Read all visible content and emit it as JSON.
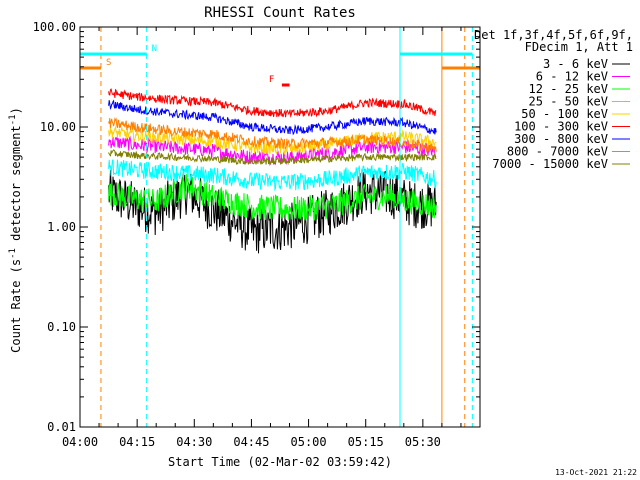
{
  "chart_data": {
    "type": "line",
    "title": "RHESSI Count Rates",
    "xlabel": "Start Time (02-Mar-02 03:59:42)",
    "ylabel_parts": [
      "Count Rate (s",
      "-1",
      " detector segment",
      "-1",
      ")"
    ],
    "yscale": "log",
    "ylim": [
      0.01,
      100
    ],
    "xlim_min": [
      0,
      105
    ],
    "x_ticks": [
      {
        "min": 0,
        "label": "04:00"
      },
      {
        "min": 15,
        "label": "04:15"
      },
      {
        "min": 30,
        "label": "04:30"
      },
      {
        "min": 45,
        "label": "04:45"
      },
      {
        "min": 60,
        "label": "05:00"
      },
      {
        "min": 75,
        "label": "05:15"
      },
      {
        "min": 90,
        "label": "05:30"
      }
    ],
    "y_ticks": [
      {
        "value": 100,
        "label": "100.00"
      },
      {
        "value": 10,
        "label": "10.00"
      },
      {
        "value": 1,
        "label": "1.00"
      },
      {
        "value": 0.1,
        "label": "0.10"
      },
      {
        "value": 0.01,
        "label": "0.01"
      }
    ],
    "legend_header": [
      "Det 1f,3f,4f,5f,6f,9f,",
      "FDecim 1, Att 1"
    ],
    "data_start_min": 7.5,
    "data_end_min": 93.5,
    "series": [
      {
        "name": "3 - 6 keV",
        "color": "#000000",
        "keys": [
          [
            7.5,
            2.2
          ],
          [
            15,
            1.6
          ],
          [
            20,
            1.4
          ],
          [
            28,
            2.3
          ],
          [
            35,
            1.5
          ],
          [
            45,
            0.9
          ],
          [
            55,
            1.0
          ],
          [
            65,
            1.4
          ],
          [
            75,
            2.3
          ],
          [
            82,
            2.1
          ],
          [
            87,
            1.7
          ],
          [
            93.5,
            1.6
          ]
        ],
        "noise": 0.55
      },
      {
        "name": "6 - 12 keV",
        "color": "#ff00ff",
        "keys": [
          [
            7.5,
            7.2
          ],
          [
            15,
            6.6
          ],
          [
            25,
            6.2
          ],
          [
            35,
            5.8
          ],
          [
            45,
            5.0
          ],
          [
            55,
            5.0
          ],
          [
            65,
            5.5
          ],
          [
            75,
            6.3
          ],
          [
            85,
            6.3
          ],
          [
            93.5,
            5.7
          ]
        ],
        "noise": 0.16
      },
      {
        "name": "12 - 25 keV",
        "color": "#00ff00",
        "keys": [
          [
            7.5,
            2.2
          ],
          [
            15,
            1.9
          ],
          [
            20,
            1.8
          ],
          [
            28,
            2.6
          ],
          [
            35,
            2.0
          ],
          [
            45,
            1.6
          ],
          [
            55,
            1.5
          ],
          [
            65,
            1.6
          ],
          [
            75,
            2.0
          ],
          [
            82,
            2.0
          ],
          [
            87,
            1.8
          ],
          [
            93.5,
            1.6
          ]
        ],
        "noise": 0.3
      },
      {
        "name": "25 - 50 keV",
        "color": "#00ffff",
        "keys": [
          [
            7.5,
            4.0
          ],
          [
            15,
            3.7
          ],
          [
            25,
            3.5
          ],
          [
            35,
            3.3
          ],
          [
            45,
            2.9
          ],
          [
            55,
            2.8
          ],
          [
            65,
            3.0
          ],
          [
            75,
            3.5
          ],
          [
            85,
            3.6
          ],
          [
            93.5,
            3.0
          ]
        ],
        "noise": 0.2
      },
      {
        "name": "50 - 100 keV",
        "color": "#ffd000",
        "keys": [
          [
            7.5,
            9.0
          ],
          [
            15,
            8.2
          ],
          [
            25,
            7.6
          ],
          [
            35,
            7.2
          ],
          [
            45,
            6.2
          ],
          [
            55,
            6.0
          ],
          [
            65,
            6.6
          ],
          [
            75,
            7.8
          ],
          [
            85,
            8.0
          ],
          [
            93.5,
            7.0
          ]
        ],
        "noise": 0.14
      },
      {
        "name": "100 - 300 keV",
        "color": "#ff0000",
        "keys": [
          [
            7.5,
            22
          ],
          [
            15,
            20
          ],
          [
            25,
            18.5
          ],
          [
            35,
            17.5
          ],
          [
            45,
            14.5
          ],
          [
            55,
            13.5
          ],
          [
            65,
            14.5
          ],
          [
            75,
            17.5
          ],
          [
            85,
            17
          ],
          [
            93.5,
            13.5
          ]
        ],
        "noise": 0.1
      },
      {
        "name": "300 - 800 keV",
        "color": "#0000ff",
        "keys": [
          [
            7.5,
            17
          ],
          [
            15,
            15
          ],
          [
            25,
            13.5
          ],
          [
            35,
            12.5
          ],
          [
            45,
            10
          ],
          [
            55,
            9.2
          ],
          [
            65,
            10
          ],
          [
            75,
            11.5
          ],
          [
            85,
            11
          ],
          [
            93.5,
            9.0
          ]
        ],
        "noise": 0.1
      },
      {
        "name": "800 - 7000 keV",
        "color": "#ff8000",
        "keys": [
          [
            7.5,
            11
          ],
          [
            15,
            10
          ],
          [
            25,
            9
          ],
          [
            35,
            8.5
          ],
          [
            45,
            7.2
          ],
          [
            55,
            6.8
          ],
          [
            65,
            7.0
          ],
          [
            75,
            7.5
          ],
          [
            85,
            7.0
          ],
          [
            93.5,
            6.0
          ]
        ],
        "noise": 0.12
      },
      {
        "name": "7000 - 15000 keV",
        "color": "#808000",
        "keys": [
          [
            7.5,
            5.5
          ],
          [
            15,
            5.2
          ],
          [
            25,
            5.0
          ],
          [
            35,
            4.8
          ],
          [
            45,
            4.5
          ],
          [
            55,
            4.6
          ],
          [
            65,
            4.8
          ],
          [
            75,
            5.0
          ],
          [
            85,
            5.0
          ],
          [
            93.5,
            5.0
          ]
        ],
        "noise": 0.08
      }
    ],
    "flags": [
      {
        "label": "S",
        "color": "#ff8000",
        "line_min": 5.5,
        "bars": [
          [
            0,
            5.5
          ],
          [
            95,
            105
          ]
        ],
        "bar_y": 68
      },
      {
        "label": "N",
        "color": "#00ffff",
        "line_min": 17.5,
        "bars": [
          [
            0,
            17.5
          ],
          [
            84,
            103
          ]
        ],
        "bar_y": 54
      },
      {
        "label": "F",
        "color": "#ff0000",
        "bars": [
          [
            53,
            55
          ]
        ],
        "bar_y": 85
      }
    ],
    "vertical_lines": [
      {
        "min": 0,
        "color": "#00ffff",
        "dashed": false
      },
      {
        "min": 5.5,
        "color": "#ff8000",
        "dashed": true
      },
      {
        "min": 17.5,
        "color": "#00ffff",
        "dashed": true
      },
      {
        "min": 84,
        "color": "#00ffff",
        "dashed": false
      },
      {
        "min": 95,
        "color": "#ff8000",
        "dashed": false
      },
      {
        "min": 101,
        "color": "#ff8000",
        "dashed": true
      },
      {
        "min": 103,
        "color": "#00ffff",
        "dashed": true
      }
    ],
    "timestamp": "13-Oct-2021 21:22"
  }
}
